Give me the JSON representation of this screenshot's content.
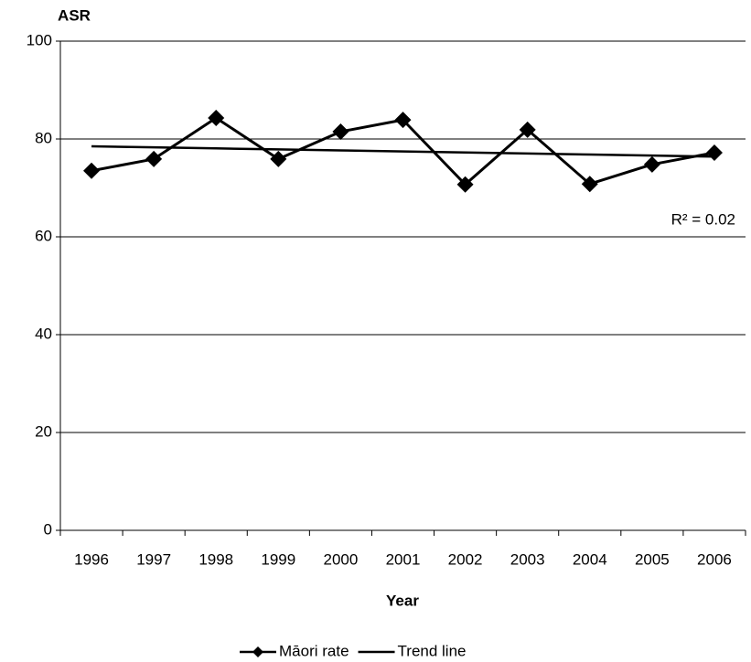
{
  "chart_data": {
    "type": "line",
    "y_label": "ASR",
    "x_label": "Year",
    "categories": [
      "1996",
      "1997",
      "1998",
      "1999",
      "2000",
      "2001",
      "2002",
      "2003",
      "2004",
      "2005",
      "2006"
    ],
    "series": [
      {
        "name": "Māori rate",
        "color": "#000000",
        "marker": "diamond",
        "values": [
          73.5,
          75.9,
          84.3,
          75.9,
          81.5,
          83.9,
          70.7,
          81.9,
          70.8,
          74.8,
          77.2
        ]
      },
      {
        "name": "Trend line",
        "color": "#000000",
        "marker": "none",
        "values": [
          78.5,
          78.29,
          78.08,
          77.87,
          77.66,
          77.45,
          77.24,
          77.03,
          76.82,
          76.61,
          76.4
        ]
      }
    ],
    "annotation": "R² = 0.02",
    "ylim": [
      0,
      100
    ],
    "yticks": [
      0,
      20,
      40,
      60,
      80,
      100
    ],
    "grid": true,
    "legend": "bottom"
  }
}
